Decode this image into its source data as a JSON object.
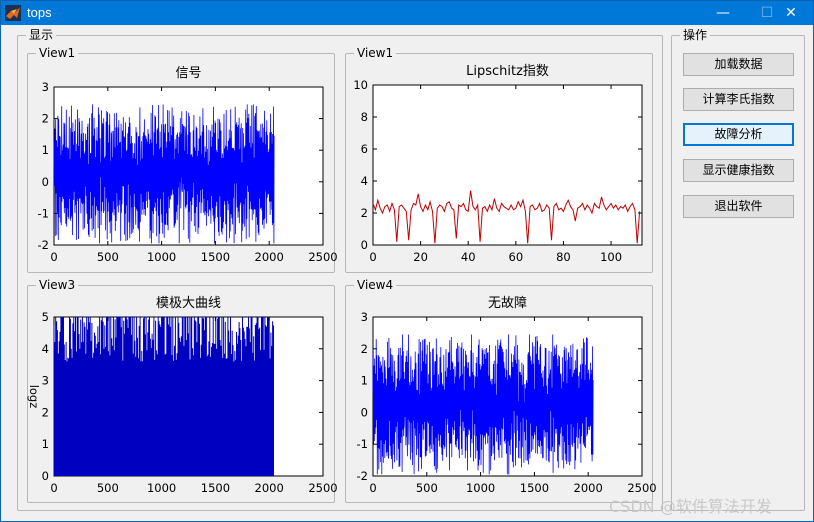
{
  "window": {
    "title": "tops",
    "controls": {
      "minimize": "—",
      "maximize": "☐",
      "close": "✕"
    }
  },
  "groups": {
    "display": "显示",
    "operations": "操作"
  },
  "panels": [
    "View1",
    "View1",
    "View3",
    "View4"
  ],
  "buttons": [
    "加载数据",
    "计算李氏指数",
    "故障分析",
    "显示健康指数",
    "退出软件"
  ],
  "focused_button_index": 2,
  "watermark": "CSDN @软件算法开发",
  "chart_data": [
    {
      "type": "line",
      "title": "信号",
      "xlim": [
        0,
        2500
      ],
      "ylim": [
        -2,
        3
      ],
      "xticks": [
        "0",
        "500",
        "1000",
        "1500",
        "2000",
        "2500"
      ],
      "yticks": [
        "-2",
        "-1",
        "0",
        "1",
        "2",
        "3"
      ],
      "series": [
        {
          "color": "#0000ff",
          "n_points": 2048,
          "amplitude_range": [
            -2,
            2.5
          ]
        }
      ]
    },
    {
      "type": "line",
      "title": "Lipschitz指数",
      "xlim": [
        0,
        113
      ],
      "ylim": [
        0,
        10
      ],
      "xticks": [
        "0",
        "20",
        "40",
        "60",
        "80",
        "100"
      ],
      "yticks": [
        "0",
        "2",
        "4",
        "6",
        "8",
        "10"
      ],
      "series": [
        {
          "color": "#c00000",
          "values": [
            2.6,
            2.2,
            2.8,
            2.3,
            2.0,
            2.4,
            2.5,
            2.1,
            2.6,
            2.2,
            0.2,
            2.4,
            2.5,
            2.3,
            2.1,
            0.3,
            2.2,
            2.6,
            2.5,
            3.2,
            2.4,
            2.1,
            2.5,
            2.2,
            2.7,
            2.1,
            0.1,
            2.3,
            2.5,
            2.4,
            2.1,
            2.6,
            2.7,
            2.3,
            2.2,
            0.4,
            2.5,
            2.4,
            2.6,
            2.2,
            2.1,
            3.4,
            2.4,
            2.2,
            2.5,
            0.2,
            2.3,
            2.4,
            2.1,
            2.5,
            2.2,
            2.9,
            2.3,
            2.1,
            2.6,
            2.4,
            2.3,
            2.2,
            2.5,
            2.2,
            2.3,
            2.7,
            2.4,
            2.8,
            2.1,
            0.1,
            2.4,
            2.5,
            2.2,
            2.3,
            2.6,
            2.1,
            2.2,
            2.5,
            2.3,
            0.3,
            2.4,
            2.6,
            2.2,
            2.3,
            2.1,
            2.5,
            2.8,
            2.4,
            2.2,
            1.5,
            2.3,
            2.4,
            2.6,
            2.2,
            2.5,
            2.3,
            2.0,
            2.6,
            2.4,
            2.3,
            3.0,
            2.5,
            2.2,
            2.4,
            2.6,
            2.3,
            2.5,
            2.2,
            2.4,
            2.3,
            2.5,
            2.1,
            2.4,
            2.6,
            2.2,
            0.1,
            2.1
          ]
        }
      ]
    },
    {
      "type": "bar",
      "title": "模极大曲线",
      "ylabel": "logz",
      "xlim": [
        0,
        2500
      ],
      "ylim": [
        0,
        5
      ],
      "xticks": [
        "0",
        "500",
        "1000",
        "1500",
        "2000",
        "2500"
      ],
      "yticks": [
        "0",
        "1",
        "2",
        "3",
        "4",
        "5"
      ],
      "series": [
        {
          "color": "#0000c0",
          "n_points": 2048,
          "value_range": [
            0,
            5
          ]
        }
      ]
    },
    {
      "type": "line",
      "title": "无故障",
      "xlim": [
        0,
        2500
      ],
      "ylim": [
        -2,
        3
      ],
      "xticks": [
        "0",
        "500",
        "1000",
        "1500",
        "2000",
        "2500"
      ],
      "yticks": [
        "-2",
        "-1",
        "0",
        "1",
        "2",
        "3"
      ],
      "series": [
        {
          "color": "#0000ff",
          "n_points": 2048,
          "amplitude_range": [
            -2,
            2.5
          ]
        }
      ]
    }
  ]
}
